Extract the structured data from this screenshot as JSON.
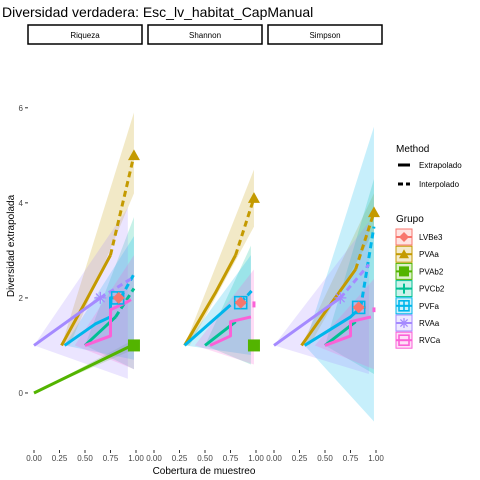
{
  "chart_data": {
    "type": "line",
    "title": "Diversidad verdadera: Esc_lv_habitat_CapManual",
    "xlabel": "Cobertura de muestreo",
    "ylabel": "Diversidad extrapolada",
    "xlim": [
      0,
      1
    ],
    "ylim": [
      -1.2,
      7.3
    ],
    "x_ticks": [
      "0.00",
      "0.25",
      "0.50",
      "0.75",
      "1.00"
    ],
    "y_ticks": [
      "0",
      "2",
      "4",
      "6"
    ],
    "y_tick_values": [
      0,
      2,
      4,
      6
    ],
    "grid": false,
    "legend_placement": "right",
    "panels": [
      {
        "label": "Riqueza",
        "series": [
          {
            "group": "PVAa",
            "color": "#C49A00",
            "ribbon": [
              [
                0.27,
                1
              ],
              [
                0.98,
                5.9
              ],
              [
                0.98,
                4.2
              ],
              [
                0.35,
                1
              ]
            ],
            "interp": [
              [
                0.27,
                1.0
              ],
              [
                0.5,
                1.9
              ],
              [
                0.75,
                2.9
              ]
            ],
            "extrap": [
              [
                0.75,
                2.9
              ],
              [
                0.98,
                5.0
              ]
            ],
            "marker": [
              0.98,
              5.0
            ],
            "shape": "triangle"
          },
          {
            "group": "PVAb2",
            "color": "#53B400",
            "ribbon": [
              [
                0.0,
                0
              ],
              [
                0.96,
                1.1
              ],
              [
                0.96,
                0.9
              ],
              [
                0.0,
                0
              ]
            ],
            "interp": [
              [
                0.0,
                0.0
              ],
              [
                0.96,
                1.0
              ]
            ],
            "extrap": [],
            "marker": [
              0.98,
              1.0
            ],
            "shape": "square"
          },
          {
            "group": "PVCb2",
            "color": "#00C094",
            "ribbon": [
              [
                0.5,
                1
              ],
              [
                0.98,
                3.7
              ],
              [
                0.98,
                0.5
              ],
              [
                0.5,
                1
              ]
            ],
            "interp": [
              [
                0.5,
                1.0
              ],
              [
                0.8,
                1.6
              ]
            ],
            "extrap": [
              [
                0.8,
                1.6
              ],
              [
                0.98,
                2.2
              ]
            ],
            "marker": null,
            "shape": null
          },
          {
            "group": "PVFa",
            "color": "#00B6EB",
            "ribbon": [
              [
                0.3,
                1
              ],
              [
                0.98,
                3.3
              ],
              [
                0.98,
                0.7
              ],
              [
                0.3,
                1
              ]
            ],
            "interp": [
              [
                0.3,
                1.0
              ],
              [
                0.6,
                1.45
              ],
              [
                0.75,
                1.6
              ],
              [
                0.75,
                2.0
              ],
              [
                0.85,
                2.0
              ]
            ],
            "extrap": [
              [
                0.85,
                2.0
              ],
              [
                0.98,
                2.5
              ]
            ],
            "marker": [
              0.82,
              2.0
            ],
            "shape": "boxplus"
          },
          {
            "group": "RVAa",
            "color": "#A58AFF",
            "ribbon": [
              [
                0.0,
                1
              ],
              [
                0.92,
                3.9
              ],
              [
                0.92,
                0.3
              ],
              [
                0.0,
                1
              ]
            ],
            "interp": [
              [
                0.0,
                1.0
              ],
              [
                0.65,
                2.0
              ]
            ],
            "extrap": [
              [
                0.65,
                2.0
              ],
              [
                0.95,
                2.4
              ]
            ],
            "marker": [
              0.65,
              2.0
            ],
            "shape": "asterisk"
          },
          {
            "group": "LVBe3",
            "color": "#F8766D",
            "ribbon": [],
            "interp": [
              [
                0.78,
                2.0
              ],
              [
                0.86,
                2.0
              ]
            ],
            "extrap": [],
            "marker": [
              0.83,
              2.0
            ],
            "shape": "diamond"
          },
          {
            "group": "RVCa",
            "color": "#FB61D7",
            "ribbon": [
              [
                0.4,
                1
              ],
              [
                0.98,
                2.9
              ],
              [
                0.98,
                0.5
              ],
              [
                0.4,
                1
              ]
            ],
            "interp": [
              [
                0.5,
                1.0
              ],
              [
                0.75,
                1.2
              ],
              [
                0.75,
                1.75
              ],
              [
                0.9,
                1.9
              ]
            ],
            "extrap": [
              [
                0.9,
                1.9
              ],
              [
                0.98,
                2.0
              ]
            ],
            "marker": null,
            "shape": null
          }
        ]
      },
      {
        "label": "Shannon",
        "series": [
          {
            "group": "PVAa",
            "color": "#C49A00",
            "ribbon": [
              [
                0.3,
                1
              ],
              [
                0.98,
                4.7
              ],
              [
                0.98,
                3.5
              ],
              [
                0.35,
                1
              ]
            ],
            "interp": [
              [
                0.3,
                1.0
              ],
              [
                0.6,
                2.1
              ],
              [
                0.8,
                2.9
              ]
            ],
            "extrap": [
              [
                0.8,
                2.9
              ],
              [
                0.98,
                4.1
              ]
            ],
            "marker": [
              0.98,
              4.1
            ],
            "shape": "triangle"
          },
          {
            "group": "PVAb2",
            "color": "#53B400",
            "ribbon": [],
            "interp": [],
            "extrap": [],
            "marker": [
              0.98,
              1.0
            ],
            "shape": "square"
          },
          {
            "group": "PVCb2",
            "color": "#00C094",
            "ribbon": [
              [
                0.5,
                1
              ],
              [
                0.95,
                3.1
              ],
              [
                0.95,
                0.6
              ],
              [
                0.5,
                1
              ]
            ],
            "interp": [
              [
                0.5,
                1.0
              ],
              [
                0.8,
                1.5
              ]
            ],
            "extrap": [],
            "marker": null,
            "shape": null
          },
          {
            "group": "PVFa",
            "color": "#00B6EB",
            "ribbon": [
              [
                0.3,
                1
              ],
              [
                0.95,
                2.9
              ],
              [
                0.95,
                0.8
              ],
              [
                0.3,
                1
              ]
            ],
            "interp": [
              [
                0.3,
                1.0
              ],
              [
                0.75,
                1.85
              ]
            ],
            "extrap": [
              [
                0.85,
                1.9
              ],
              [
                0.98,
                2.2
              ]
            ],
            "marker": [
              0.85,
              1.9
            ],
            "shape": "boxplus"
          },
          {
            "group": "LVBe3",
            "color": "#F8766D",
            "ribbon": [],
            "interp": [
              [
                0.8,
                1.9
              ],
              [
                0.9,
                1.9
              ]
            ],
            "extrap": [],
            "marker": [
              0.85,
              1.9
            ],
            "shape": "diamond"
          },
          {
            "group": "RVCa",
            "color": "#FB61D7",
            "ribbon": [
              [
                0.4,
                1
              ],
              [
                0.98,
                2.6
              ],
              [
                0.98,
                0.6
              ],
              [
                0.4,
                1
              ]
            ],
            "interp": [
              [
                0.55,
                1.0
              ],
              [
                0.75,
                1.2
              ],
              [
                0.75,
                1.5
              ],
              [
                0.95,
                1.6
              ]
            ],
            "extrap": [
              [
                0.98,
                1.8
              ],
              [
                0.98,
                2.0
              ]
            ],
            "marker": null,
            "shape": null
          }
        ]
      },
      {
        "label": "Simpson",
        "series": [
          {
            "group": "PVAa",
            "color": "#C49A00",
            "ribbon": [
              [
                0.27,
                1
              ],
              [
                0.98,
                4.2
              ],
              [
                0.98,
                3.4
              ],
              [
                0.35,
                1
              ]
            ],
            "interp": [
              [
                0.27,
                1.0
              ],
              [
                0.6,
                2.0
              ],
              [
                0.8,
                2.6
              ]
            ],
            "extrap": [
              [
                0.8,
                2.6
              ],
              [
                0.98,
                3.8
              ]
            ],
            "marker": [
              0.98,
              3.8
            ],
            "shape": "triangle"
          },
          {
            "group": "PVCb2",
            "color": "#00C094",
            "ribbon": [
              [
                0.5,
                1
              ],
              [
                0.98,
                4.5
              ],
              [
                0.98,
                0.4
              ],
              [
                0.5,
                1
              ]
            ],
            "interp": [
              [
                0.5,
                1.0
              ],
              [
                0.8,
                1.5
              ]
            ],
            "extrap": [],
            "marker": null,
            "shape": null
          },
          {
            "group": "PVFa",
            "color": "#00B6EB",
            "ribbon": [
              [
                0.3,
                1
              ],
              [
                0.98,
                5.6
              ],
              [
                0.98,
                -0.6
              ],
              [
                0.3,
                1
              ]
            ],
            "interp": [
              [
                0.3,
                1.0
              ],
              [
                0.75,
                1.6
              ],
              [
                0.85,
                1.8
              ]
            ],
            "extrap": [
              [
                0.85,
                1.8
              ],
              [
                0.98,
                3.5
              ]
            ],
            "marker": [
              0.83,
              1.8
            ],
            "shape": "boxplus"
          },
          {
            "group": "RVAa",
            "color": "#A58AFF",
            "ribbon": [
              [
                0.0,
                1
              ],
              [
                0.93,
                3.6
              ],
              [
                0.93,
                0.4
              ],
              [
                0.0,
                1
              ]
            ],
            "interp": [
              [
                0.0,
                1.0
              ],
              [
                0.65,
                2.0
              ]
            ],
            "extrap": [
              [
                0.65,
                2.0
              ],
              [
                0.93,
                2.7
              ]
            ],
            "marker": [
              0.65,
              2.0
            ],
            "shape": "asterisk"
          },
          {
            "group": "LVBe3",
            "color": "#F8766D",
            "ribbon": [],
            "interp": [
              [
                0.8,
                1.8
              ],
              [
                0.9,
                1.8
              ]
            ],
            "extrap": [],
            "marker": [
              0.83,
              1.8
            ],
            "shape": "diamond"
          },
          {
            "group": "RVCa",
            "color": "#FB61D7",
            "ribbon": [
              [
                0.4,
                1
              ],
              [
                0.98,
                2.4
              ],
              [
                0.98,
                0.5
              ],
              [
                0.4,
                1
              ]
            ],
            "interp": [
              [
                0.5,
                1.0
              ],
              [
                0.75,
                1.2
              ],
              [
                0.75,
                1.5
              ],
              [
                0.95,
                1.6
              ]
            ],
            "extrap": [
              [
                0.98,
                1.7
              ],
              [
                0.98,
                1.8
              ]
            ],
            "marker": null,
            "shape": null
          }
        ]
      }
    ],
    "legend_method": {
      "title": "Method",
      "items": [
        {
          "label": "Extrapolado",
          "dash": "solid"
        },
        {
          "label": "Interpolado",
          "dash": "dashed"
        }
      ]
    },
    "legend_group": {
      "title": "Grupo",
      "items": [
        {
          "label": "LVBe3",
          "color": "#F8766D",
          "shape": "diamond"
        },
        {
          "label": "PVAa",
          "color": "#C49A00",
          "shape": "triangle"
        },
        {
          "label": "PVAb2",
          "color": "#53B400",
          "shape": "square"
        },
        {
          "label": "PVCb2",
          "color": "#00C094",
          "shape": "plus"
        },
        {
          "label": "PVFa",
          "color": "#00B6EB",
          "shape": "boxplus"
        },
        {
          "label": "RVAa",
          "color": "#A58AFF",
          "shape": "asterisk"
        },
        {
          "label": "RVCa",
          "color": "#FB61D7",
          "shape": "square-hollow"
        }
      ]
    }
  }
}
